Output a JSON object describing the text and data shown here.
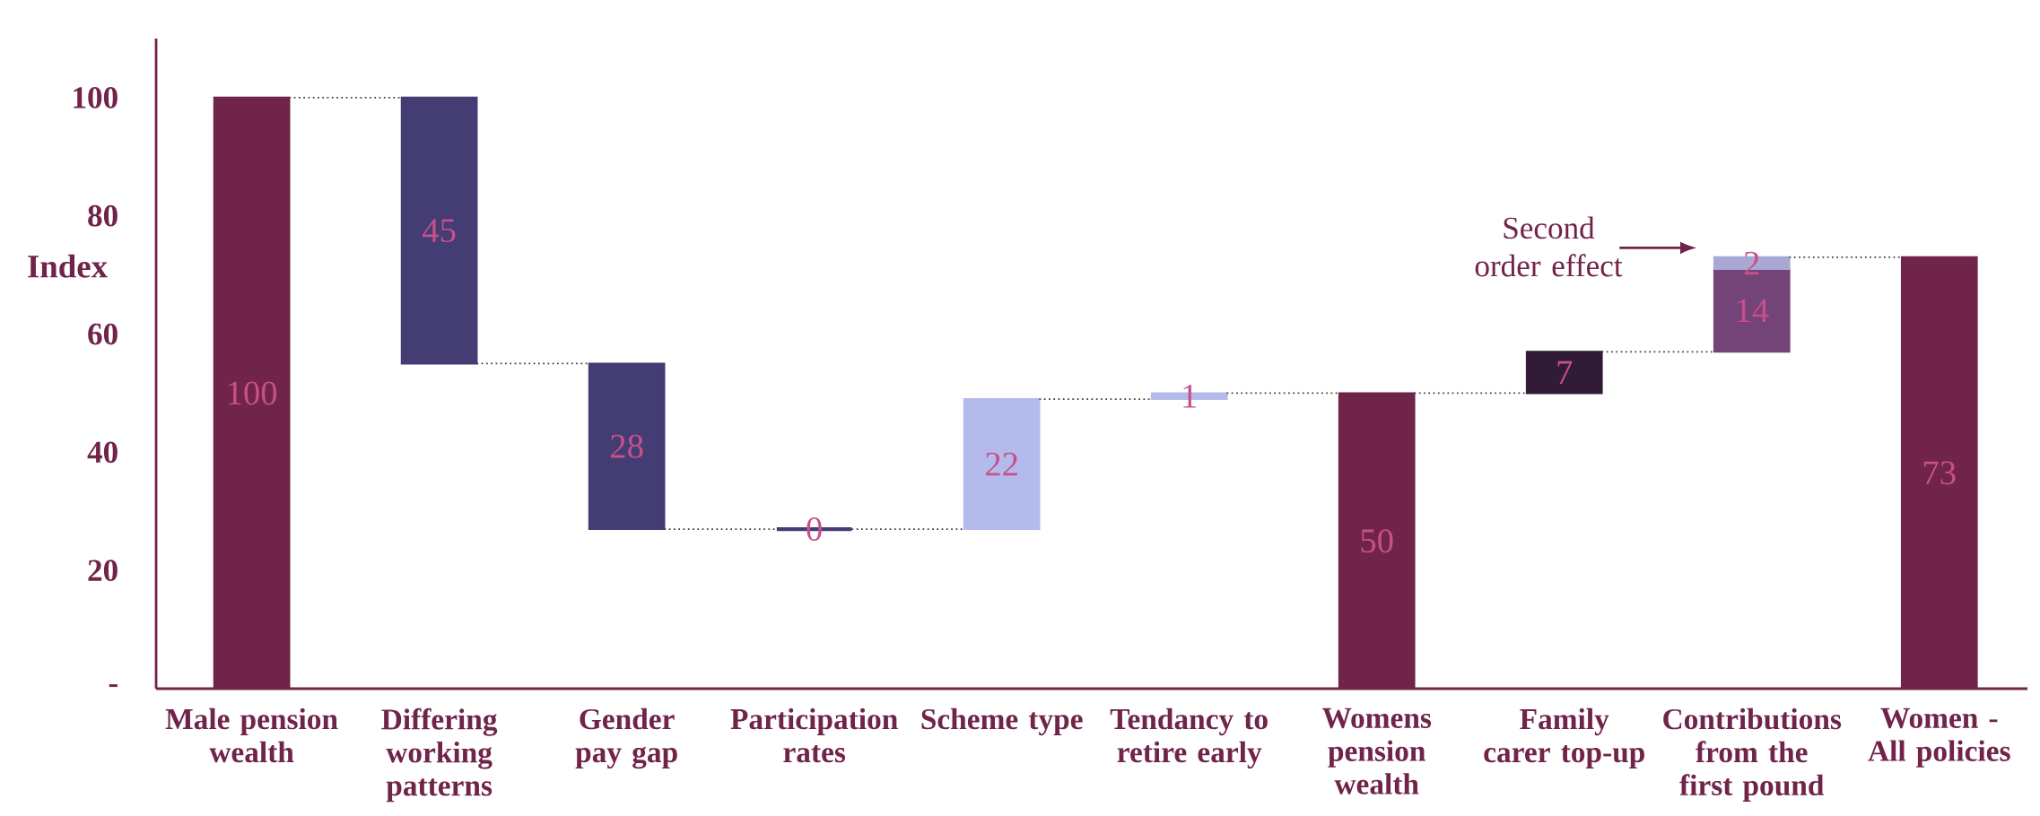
{
  "chart_data": {
    "type": "bar",
    "ylabel": "Index",
    "categories": [
      "Male pension wealth",
      "Differing working patterns",
      "Gender pay gap",
      "Participation rates",
      "Scheme type",
      "Tendancy to retire early",
      "Womens pension wealth",
      "Family carer top-up",
      "Contributions from the first pound",
      "Women - All policies"
    ],
    "series": [
      {
        "values": [
          100,
          45,
          28,
          0,
          22,
          1,
          50,
          7,
          14,
          73
        ],
        "base": [
          0,
          55,
          27,
          27,
          27,
          49,
          0,
          50,
          57,
          0
        ],
        "colors": [
          "#702449",
          "#433d73",
          "#433d73",
          "#433d73",
          "#b4bbec",
          "#b4bbec",
          "#702449",
          "#311c36",
          "#744378",
          "#702449"
        ]
      },
      {
        "values": [
          null,
          null,
          null,
          null,
          null,
          null,
          null,
          null,
          2,
          null
        ],
        "base": [
          null,
          null,
          null,
          null,
          null,
          null,
          null,
          null,
          71,
          null
        ],
        "color": "#aba7d4"
      }
    ],
    "ylim": [
      0,
      110
    ],
    "yticks": [
      {
        "value": 0,
        "label": "-"
      },
      20,
      40,
      60,
      80,
      100
    ],
    "data_labels": true,
    "annotations": [
      "Second order effect"
    ]
  }
}
